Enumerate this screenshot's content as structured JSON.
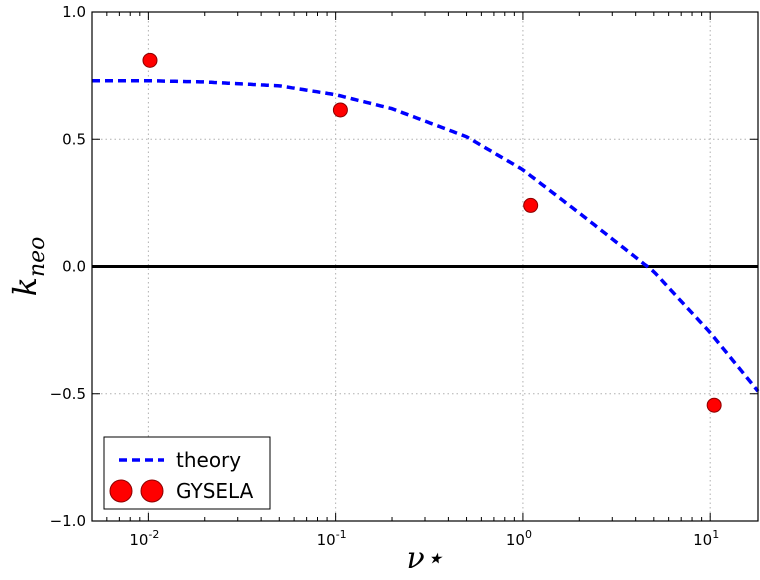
{
  "chart_data": {
    "type": "scatter",
    "xscale": "log",
    "xlim": [
      0.005,
      18
    ],
    "ylim": [
      -1.0,
      1.0
    ],
    "xlabel": "ν⋆",
    "ylabel": "k",
    "ylabel_sub": "neo",
    "grid": true,
    "legend_position": "bottom-left",
    "x_ticks": [
      {
        "base": "10",
        "exp": "-2",
        "value": 0.01
      },
      {
        "base": "10",
        "exp": "-1",
        "value": 0.1
      },
      {
        "base": "10",
        "exp": "0",
        "value": 1
      },
      {
        "base": "10",
        "exp": "1",
        "value": 10
      }
    ],
    "y_ticks": [
      {
        "label": "1.0",
        "value": 1.0
      },
      {
        "label": "0.5",
        "value": 0.5
      },
      {
        "label": "0.0",
        "value": 0.0
      },
      {
        "label": "−0.5",
        "value": -0.5
      },
      {
        "label": "−1.0",
        "value": -1.0
      }
    ],
    "reference_line": {
      "y": 0.0,
      "color": "#000000"
    },
    "series": [
      {
        "name": "theory",
        "kind": "line",
        "style": "dashed",
        "color": "#0000ff",
        "x": [
          0.005,
          0.01,
          0.02,
          0.05,
          0.1,
          0.2,
          0.5,
          1,
          2,
          5,
          10,
          18
        ],
        "y": [
          0.73,
          0.73,
          0.725,
          0.71,
          0.675,
          0.62,
          0.51,
          0.38,
          0.21,
          -0.02,
          -0.26,
          -0.49
        ]
      },
      {
        "name": "GYSELA",
        "kind": "scatter",
        "color": "#ff0000",
        "edge_color": "#8b0000",
        "x": [
          0.0102,
          0.106,
          1.1,
          10.5
        ],
        "y": [
          0.81,
          0.615,
          0.24,
          -0.545
        ]
      }
    ]
  }
}
